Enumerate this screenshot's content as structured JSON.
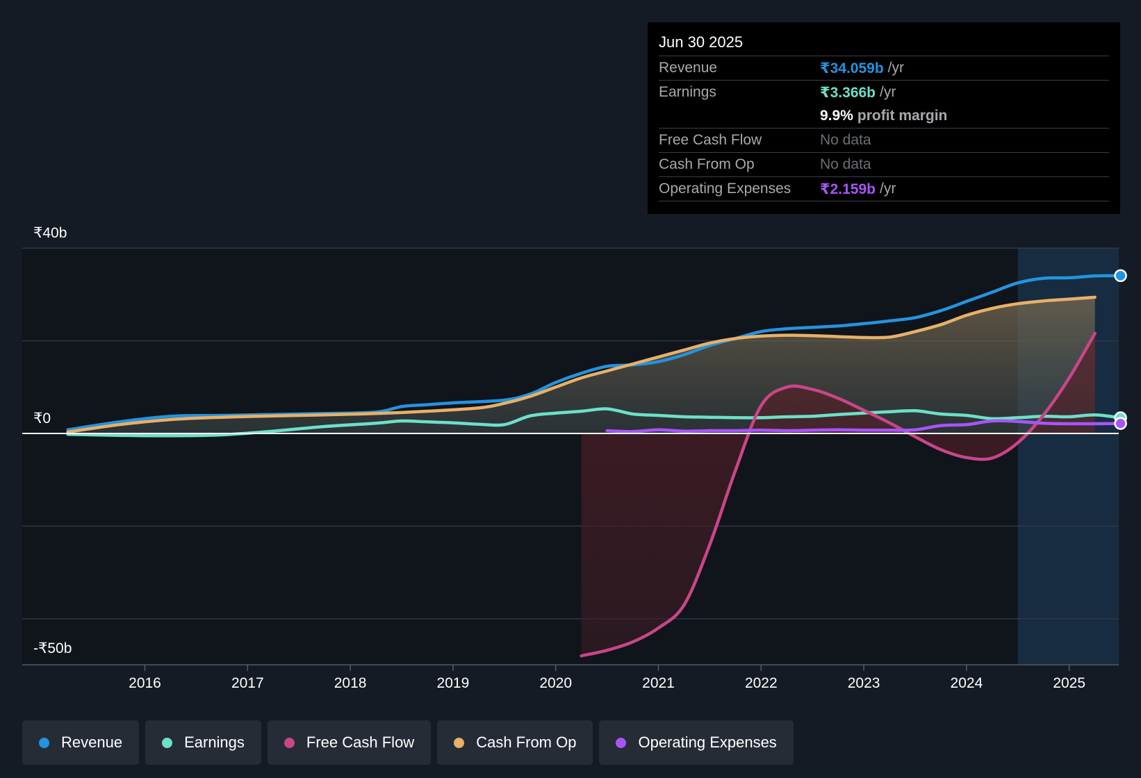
{
  "tooltip": {
    "date": "Jun 30 2025",
    "revenue_label": "Revenue",
    "revenue_value": "₹34.059b",
    "revenue_unit": "/yr",
    "earnings_label": "Earnings",
    "earnings_value": "₹3.366b",
    "earnings_unit": "/yr",
    "margin_value": "9.9%",
    "margin_text": "profit margin",
    "fcf_label": "Free Cash Flow",
    "fcf_value": "No data",
    "cfo_label": "Cash From Op",
    "cfo_value": "No data",
    "opex_label": "Operating Expenses",
    "opex_value": "₹2.159b",
    "opex_unit": "/yr"
  },
  "legend": {
    "revenue": "Revenue",
    "earnings": "Earnings",
    "fcf": "Free Cash Flow",
    "cfo": "Cash From Op",
    "opex": "Operating Expenses"
  },
  "colors": {
    "revenue": "#2394df",
    "earnings": "#6ce0c8",
    "fcf": "#c84687",
    "cfo": "#e8b068",
    "opex": "#a855f7",
    "background": "#151b24",
    "grid": "#323842",
    "zero": "#ffffff"
  },
  "chart_data": {
    "type": "line",
    "title": "",
    "xlabel": "",
    "ylabel": "",
    "x_ticks": [
      {
        "label": "2016",
        "value": 2016
      },
      {
        "label": "2017",
        "value": 2017
      },
      {
        "label": "2018",
        "value": 2018
      },
      {
        "label": "2019",
        "value": 2019
      },
      {
        "label": "2020",
        "value": 2020
      },
      {
        "label": "2021",
        "value": 2021
      },
      {
        "label": "2022",
        "value": 2022
      },
      {
        "label": "2023",
        "value": 2023
      },
      {
        "label": "2024",
        "value": 2024
      },
      {
        "label": "2025",
        "value": 2025
      }
    ],
    "y_ticks": [
      {
        "label": "₹40b",
        "value": 40
      },
      {
        "label": "₹0",
        "value": 0
      },
      {
        "label": "-₹50b",
        "value": -50
      }
    ],
    "xlim": [
      2014.8,
      2025.5
    ],
    "ylim": [
      -50,
      40
    ],
    "units": "₹ billions",
    "highlight_start": 2024.5,
    "series": [
      {
        "name": "Revenue",
        "key": "revenue",
        "end_marker": true,
        "points": [
          [
            2015.25,
            0.8
          ],
          [
            2015.75,
            2.5
          ],
          [
            2016.25,
            3.7
          ],
          [
            2016.75,
            3.9
          ],
          [
            2017.25,
            4.1
          ],
          [
            2017.75,
            4.3
          ],
          [
            2018.25,
            4.6
          ],
          [
            2018.5,
            5.8
          ],
          [
            2018.75,
            6.2
          ],
          [
            2019.0,
            6.6
          ],
          [
            2019.5,
            7.2
          ],
          [
            2019.75,
            8.5
          ],
          [
            2020.0,
            11.0
          ],
          [
            2020.25,
            13.0
          ],
          [
            2020.5,
            14.5
          ],
          [
            2020.75,
            14.8
          ],
          [
            2021.0,
            15.5
          ],
          [
            2021.25,
            17.0
          ],
          [
            2021.5,
            19.0
          ],
          [
            2021.75,
            20.5
          ],
          [
            2022.0,
            22.0
          ],
          [
            2022.25,
            22.6
          ],
          [
            2022.5,
            22.9
          ],
          [
            2022.75,
            23.2
          ],
          [
            2023.0,
            23.7
          ],
          [
            2023.25,
            24.3
          ],
          [
            2023.5,
            25.0
          ],
          [
            2023.75,
            26.5
          ],
          [
            2024.0,
            28.5
          ],
          [
            2024.25,
            30.5
          ],
          [
            2024.5,
            32.5
          ],
          [
            2024.75,
            33.5
          ],
          [
            2025.0,
            33.6
          ],
          [
            2025.25,
            34.0
          ],
          [
            2025.5,
            34.059
          ]
        ]
      },
      {
        "name": "Cash From Op",
        "key": "cfo",
        "area": true,
        "points": [
          [
            2015.25,
            0.3
          ],
          [
            2015.75,
            1.9
          ],
          [
            2016.25,
            3.0
          ],
          [
            2016.75,
            3.5
          ],
          [
            2017.25,
            3.8
          ],
          [
            2017.75,
            4.0
          ],
          [
            2018.25,
            4.3
          ],
          [
            2018.75,
            4.8
          ],
          [
            2019.25,
            5.5
          ],
          [
            2019.5,
            6.5
          ],
          [
            2019.75,
            8.0
          ],
          [
            2020.0,
            10.0
          ],
          [
            2020.25,
            12.0
          ],
          [
            2020.5,
            13.5
          ],
          [
            2020.75,
            15.0
          ],
          [
            2021.0,
            16.5
          ],
          [
            2021.25,
            18.0
          ],
          [
            2021.5,
            19.5
          ],
          [
            2021.75,
            20.5
          ],
          [
            2022.0,
            21.0
          ],
          [
            2022.25,
            21.2
          ],
          [
            2022.5,
            21.1
          ],
          [
            2022.75,
            20.9
          ],
          [
            2023.0,
            20.7
          ],
          [
            2023.25,
            20.8
          ],
          [
            2023.5,
            22.0
          ],
          [
            2023.75,
            23.5
          ],
          [
            2024.0,
            25.5
          ],
          [
            2024.25,
            27.0
          ],
          [
            2024.5,
            28.0
          ],
          [
            2024.75,
            28.6
          ],
          [
            2025.0,
            29.0
          ],
          [
            2025.25,
            29.4
          ]
        ]
      },
      {
        "name": "Earnings",
        "key": "earnings",
        "end_marker": true,
        "points": [
          [
            2015.25,
            -0.2
          ],
          [
            2015.75,
            -0.4
          ],
          [
            2016.25,
            -0.5
          ],
          [
            2016.75,
            -0.3
          ],
          [
            2017.25,
            0.5
          ],
          [
            2017.75,
            1.5
          ],
          [
            2018.25,
            2.2
          ],
          [
            2018.5,
            2.7
          ],
          [
            2018.75,
            2.5
          ],
          [
            2019.0,
            2.3
          ],
          [
            2019.25,
            2.0
          ],
          [
            2019.5,
            1.9
          ],
          [
            2019.75,
            3.8
          ],
          [
            2020.0,
            4.4
          ],
          [
            2020.25,
            4.8
          ],
          [
            2020.5,
            5.3
          ],
          [
            2020.75,
            4.2
          ],
          [
            2021.0,
            3.9
          ],
          [
            2021.25,
            3.6
          ],
          [
            2021.5,
            3.5
          ],
          [
            2021.75,
            3.4
          ],
          [
            2022.0,
            3.4
          ],
          [
            2022.25,
            3.6
          ],
          [
            2022.5,
            3.7
          ],
          [
            2022.75,
            4.1
          ],
          [
            2023.0,
            4.4
          ],
          [
            2023.25,
            4.7
          ],
          [
            2023.5,
            4.9
          ],
          [
            2023.75,
            4.2
          ],
          [
            2024.0,
            3.9
          ],
          [
            2024.25,
            3.2
          ],
          [
            2024.5,
            3.4
          ],
          [
            2024.75,
            3.7
          ],
          [
            2025.0,
            3.6
          ],
          [
            2025.25,
            4.0
          ],
          [
            2025.5,
            3.366
          ]
        ]
      },
      {
        "name": "Free Cash Flow",
        "key": "fcf",
        "area": true,
        "points": [
          [
            2020.25,
            -48.0
          ],
          [
            2020.5,
            -46.8
          ],
          [
            2020.75,
            -45.0
          ],
          [
            2021.0,
            -42.0
          ],
          [
            2021.25,
            -37.0
          ],
          [
            2021.5,
            -24.0
          ],
          [
            2021.75,
            -8.0
          ],
          [
            2022.0,
            6.0
          ],
          [
            2022.25,
            10.0
          ],
          [
            2022.5,
            9.5
          ],
          [
            2022.75,
            7.6
          ],
          [
            2023.0,
            5.0
          ],
          [
            2023.25,
            2.3
          ],
          [
            2023.5,
            -0.7
          ],
          [
            2023.75,
            -3.5
          ],
          [
            2024.0,
            -5.2
          ],
          [
            2024.25,
            -5.3
          ],
          [
            2024.5,
            -2.0
          ],
          [
            2024.75,
            4.0
          ],
          [
            2025.0,
            12.0
          ],
          [
            2025.25,
            21.6
          ]
        ]
      },
      {
        "name": "Operating Expenses",
        "key": "opex",
        "end_marker": true,
        "points": [
          [
            2020.5,
            0.6
          ],
          [
            2020.75,
            0.4
          ],
          [
            2021.0,
            0.8
          ],
          [
            2021.25,
            0.5
          ],
          [
            2021.5,
            0.6
          ],
          [
            2021.75,
            0.6
          ],
          [
            2022.0,
            0.7
          ],
          [
            2022.25,
            0.6
          ],
          [
            2022.5,
            0.7
          ],
          [
            2022.75,
            0.8
          ],
          [
            2023.0,
            0.7
          ],
          [
            2023.25,
            0.7
          ],
          [
            2023.5,
            0.8
          ],
          [
            2023.75,
            1.7
          ],
          [
            2024.0,
            1.9
          ],
          [
            2024.25,
            2.7
          ],
          [
            2024.5,
            2.6
          ],
          [
            2024.75,
            2.2
          ],
          [
            2025.0,
            2.1
          ],
          [
            2025.25,
            2.1
          ],
          [
            2025.5,
            2.159
          ]
        ]
      }
    ]
  }
}
